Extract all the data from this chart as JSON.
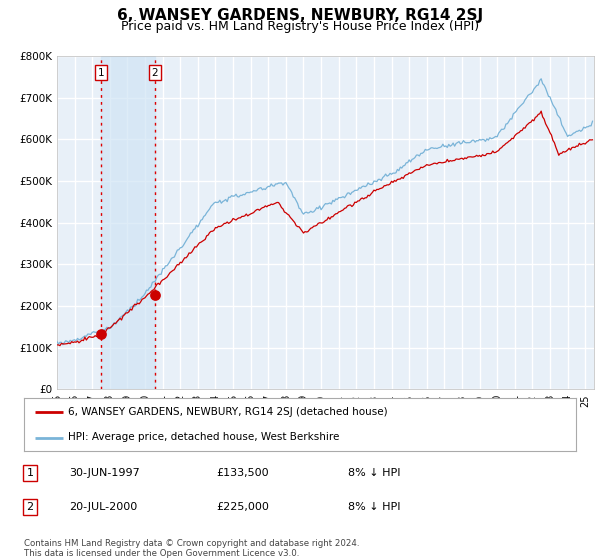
{
  "title": "6, WANSEY GARDENS, NEWBURY, RG14 2SJ",
  "subtitle": "Price paid vs. HM Land Registry's House Price Index (HPI)",
  "ylim": [
    0,
    800000
  ],
  "yticks": [
    0,
    100000,
    200000,
    300000,
    400000,
    500000,
    600000,
    700000,
    800000
  ],
  "ytick_labels": [
    "£0",
    "£100K",
    "£200K",
    "£300K",
    "£400K",
    "£500K",
    "£600K",
    "£700K",
    "£800K"
  ],
  "sale1_year": 1997.496,
  "sale1_price": 133500,
  "sale2_year": 2000.554,
  "sale2_price": 225000,
  "legend_line1": "6, WANSEY GARDENS, NEWBURY, RG14 2SJ (detached house)",
  "legend_line2": "HPI: Average price, detached house, West Berkshire",
  "table_rows": [
    {
      "num": "1",
      "date": "30-JUN-1997",
      "price": "£133,500",
      "hpi": "8% ↓ HPI"
    },
    {
      "num": "2",
      "date": "20-JUL-2000",
      "price": "£225,000",
      "hpi": "8% ↓ HPI"
    }
  ],
  "footnote": "Contains HM Land Registry data © Crown copyright and database right 2024.\nThis data is licensed under the Open Government Licence v3.0.",
  "hpi_color": "#7ab4d8",
  "price_color": "#cc0000",
  "vline_color": "#dd0000",
  "shade_color": "#d0e4f5",
  "bg_color": "#e8f0f8",
  "grid_color": "#ffffff",
  "title_fontsize": 11,
  "subtitle_fontsize": 9,
  "tick_fontsize": 7,
  "ytick_fontsize": 7.5
}
